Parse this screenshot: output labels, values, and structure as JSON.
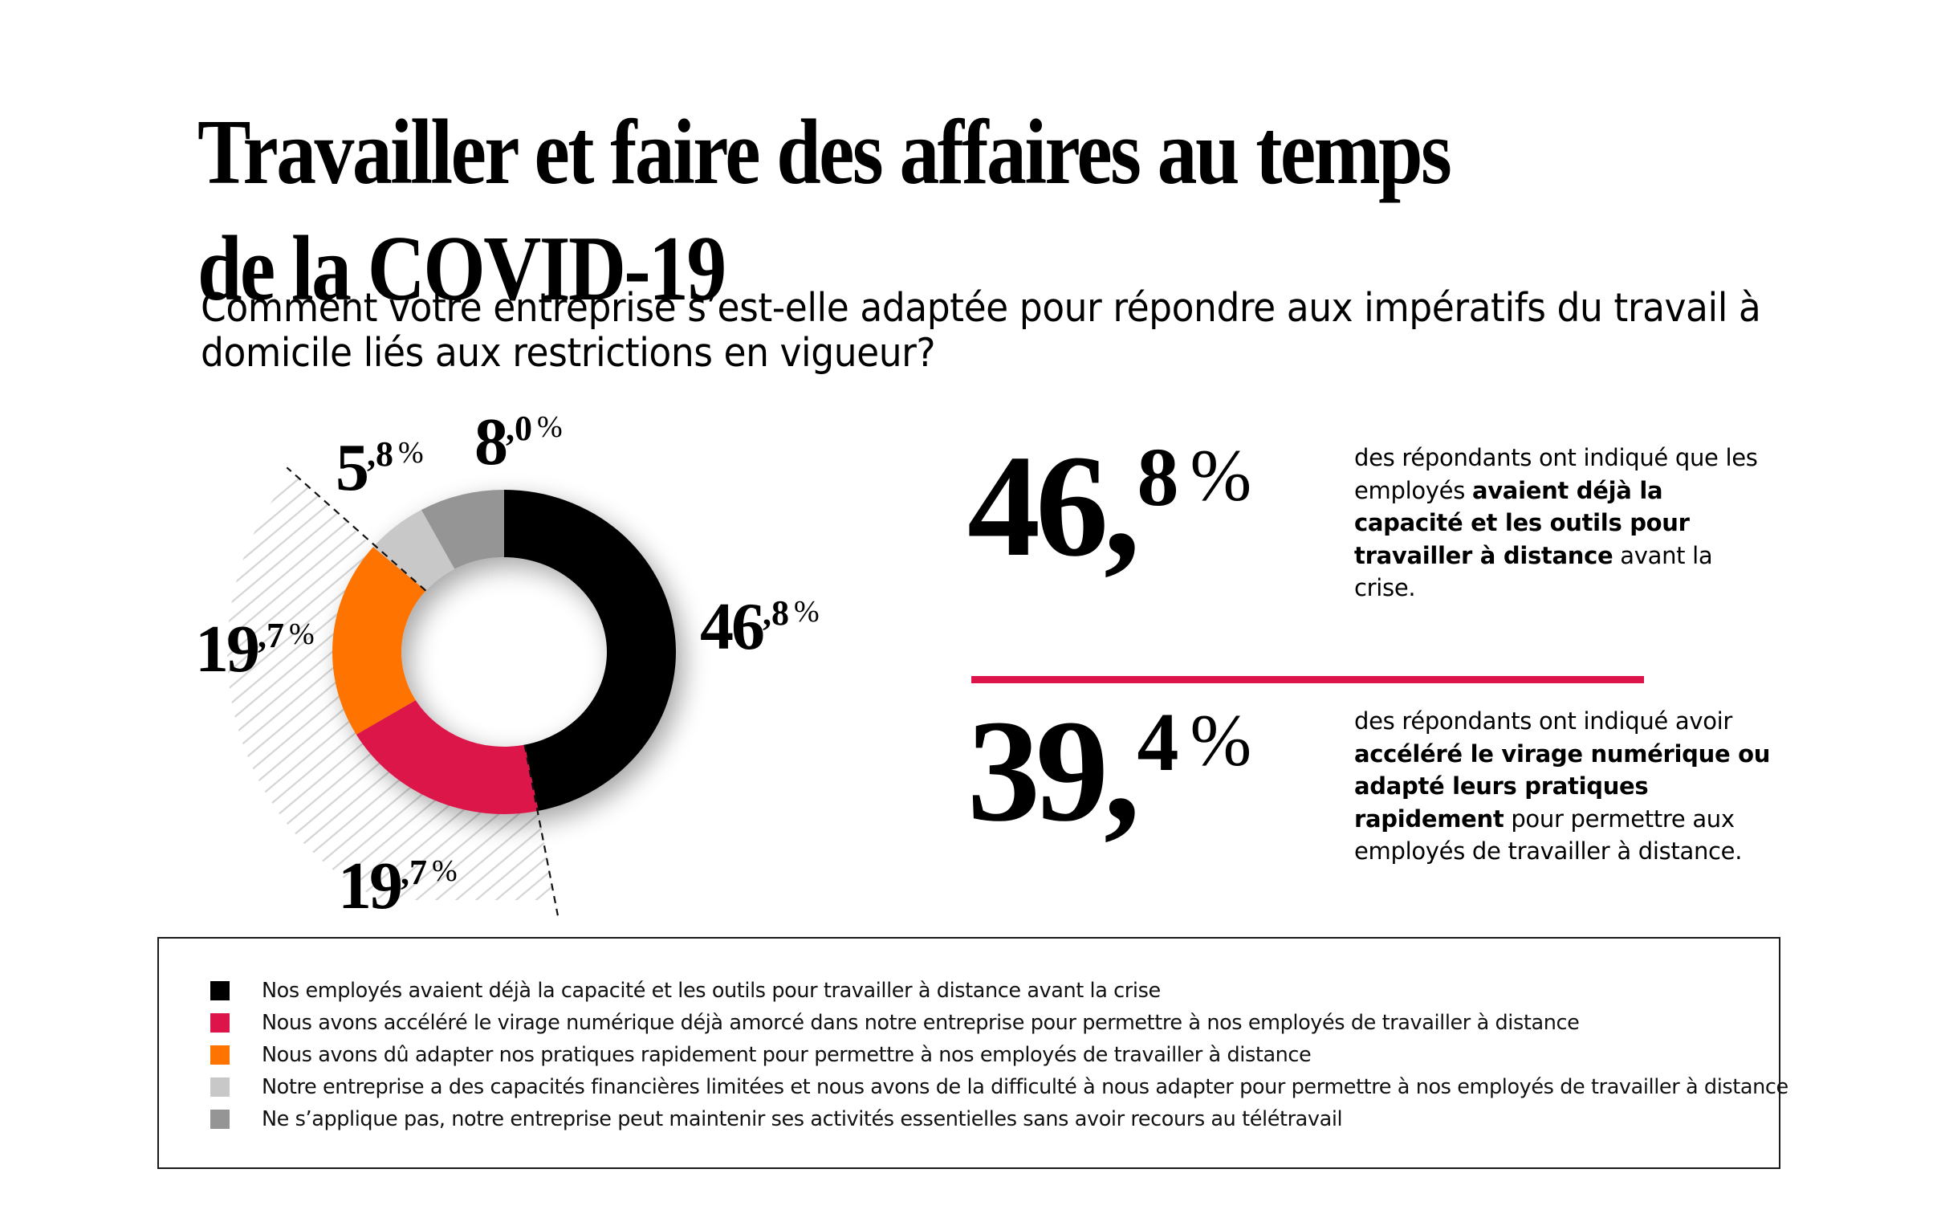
{
  "title": {
    "line1": "Travailler et faire des affaires au temps",
    "line2": "de la COVID-19"
  },
  "subtitle": "Comment votre entreprise s’est-elle adaptée pour répondre aux impératifs du travail à domicile liés aux restrictions en vigueur?",
  "chart_data": {
    "type": "pie",
    "variant": "donut",
    "title": "Comment votre entreprise s’est-elle adaptée pour répondre aux impératifs du travail à domicile liés aux restrictions en vigueur?",
    "unit": "%",
    "start": "top",
    "direction": "clockwise",
    "slices": [
      {
        "key": "already-equipped",
        "label": "Nos employés avaient déjà la capacité et les outils pour travailler à distance avant la crise",
        "value": 46.8,
        "int": "46",
        "dec": ",8",
        "color": "#000000"
      },
      {
        "key": "accelerated-digital",
        "label": "Nous avons accéléré le virage numérique déjà amorcé dans notre entreprise pour permettre à nos employés de travailler à distance",
        "value": 19.7,
        "int": "19",
        "dec": ",7",
        "color": "#DC1449"
      },
      {
        "key": "adapted-quickly",
        "label": "Nous avons dû adapter nos pratiques rapidement pour permettre à nos employés de travailler à distance",
        "value": 19.7,
        "int": "19",
        "dec": ",7",
        "color": "#FF7300"
      },
      {
        "key": "limited-finances",
        "label": "Notre entreprise a des capacités financières limitées et nous avons de la difficulté à nous adapter pour permettre à nos employés de travailler à distance",
        "value": 5.8,
        "int": "5",
        "dec": ",8",
        "color": "#C8C8C8"
      },
      {
        "key": "not-applicable",
        "label": "Ne s’applique pas, notre entreprise peut maintenir ses activités essentielles sans avoir recours au télétravail",
        "value": 8.0,
        "int": "8",
        "dec": ",0",
        "color": "#959595"
      }
    ],
    "highlight": {
      "slices": [
        "accelerated-digital",
        "adapted-quickly"
      ],
      "style": "hatched wedge with dashed boundary lines",
      "total": 39.4
    },
    "percent_symbol": "%",
    "legend_position": "bottom"
  },
  "stats": [
    {
      "int": "46,",
      "dec": "8",
      "sym": "%",
      "desc": [
        {
          "text": "des répondants ont indiqué que les employés ",
          "bold": false
        },
        {
          "text": "avaient déjà la capacité et les outils pour travailler à distance",
          "bold": true
        },
        {
          "text": " avant la crise.",
          "bold": false
        }
      ]
    },
    {
      "int": "39,",
      "dec": "4",
      "sym": "%",
      "desc": [
        {
          "text": "des répondants ont indiqué avoir ",
          "bold": false
        },
        {
          "text": "accéléré le virage numérique ou adapté leurs pratiques rapidement",
          "bold": true
        },
        {
          "text": " pour permettre aux employés de travailler à distance.",
          "bold": false
        }
      ]
    }
  ],
  "colors": {
    "accent": "#DC1449",
    "hatch": "#D4D4D4"
  }
}
